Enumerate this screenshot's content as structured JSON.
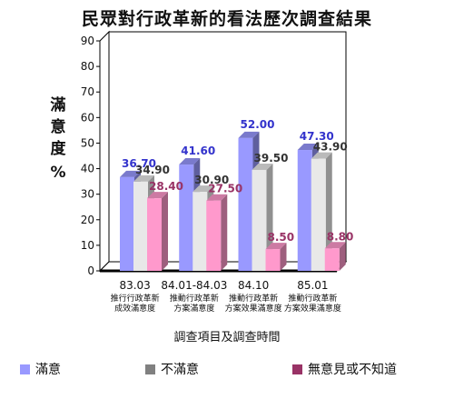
{
  "chart_data": {
    "type": "bar",
    "title": "民眾對行政革新的看法歷次調查結果",
    "ylabel": "滿意度",
    "ylabel_unit": "%",
    "xlabel": "調查項目及調查時間",
    "ylim": [
      0,
      90
    ],
    "yticks": [
      0,
      10,
      20,
      30,
      40,
      50,
      60,
      70,
      80,
      90
    ],
    "categories": [
      {
        "date": "83.03",
        "line1": "推行行政革新",
        "line2": "成效滿意度"
      },
      {
        "date": "84.01-84.03",
        "line1": "推動行政革新",
        "line2": "方案滿意度"
      },
      {
        "date": "84.10",
        "line1": "推動行政革新",
        "line2": "方案效果滿意度"
      },
      {
        "date": "85.01",
        "line1": "推動行政革新",
        "line2": "方案效果滿意度"
      }
    ],
    "series": [
      {
        "name": "滿意",
        "values": [
          36.7,
          41.6,
          52.0,
          47.3
        ],
        "labels": [
          "36.70",
          "41.60",
          "52.00",
          "47.30"
        ],
        "color": "#9999ff",
        "label_color": "#3333cc"
      },
      {
        "name": "不滿意",
        "values": [
          34.9,
          30.9,
          39.5,
          43.9
        ],
        "labels": [
          "34.90",
          "30.90",
          "39.50",
          "43.90"
        ],
        "color": "#e8e8e8",
        "label_color": "#333333"
      },
      {
        "name": "無意見或不知道",
        "values": [
          28.4,
          27.5,
          8.5,
          8.8
        ],
        "labels": [
          "28.40",
          "27.50",
          "8.50",
          "8.80"
        ],
        "color": "#ff99cc",
        "label_color": "#993366"
      }
    ],
    "legend_swatch_colors": [
      "#9999ff",
      "#808080",
      "#993366"
    ],
    "legend_position": "bottom",
    "grid": false
  }
}
